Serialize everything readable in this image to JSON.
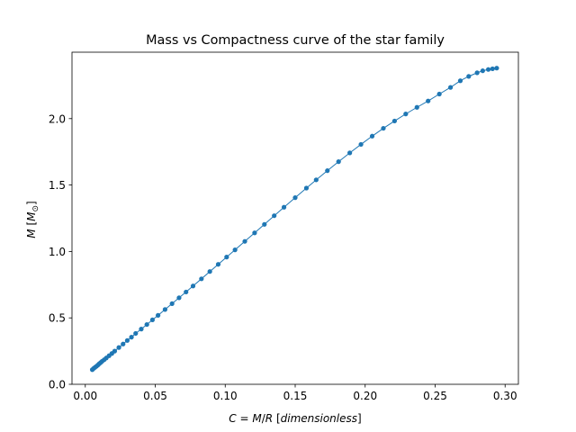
{
  "chart_data": {
    "type": "line",
    "title": "Mass vs Compactness curve of the star family",
    "xlabel": "C = M/R [dimensionless]",
    "ylabel": "M [M⊙]",
    "xlim": [
      -0.0095,
      0.3095
    ],
    "ylim": [
      0.0,
      2.5
    ],
    "x_ticks": [
      0.0,
      0.05,
      0.1,
      0.15,
      0.2,
      0.25,
      0.3
    ],
    "x_tick_labels": [
      "0.00",
      "0.05",
      "0.10",
      "0.15",
      "0.20",
      "0.25",
      "0.30"
    ],
    "y_ticks": [
      0.0,
      0.5,
      1.0,
      1.5,
      2.0
    ],
    "y_tick_labels": [
      "0.0",
      "0.5",
      "1.0",
      "1.5",
      "2.0"
    ],
    "grid": false,
    "legend": "none",
    "color": "#1f77b4",
    "series": [
      {
        "marker": "circle",
        "x": [
          0.005,
          0.006,
          0.007,
          0.008,
          0.009,
          0.01,
          0.011,
          0.012,
          0.0135,
          0.015,
          0.017,
          0.019,
          0.021,
          0.024,
          0.027,
          0.03,
          0.033,
          0.036,
          0.04,
          0.044,
          0.048,
          0.052,
          0.057,
          0.062,
          0.067,
          0.072,
          0.077,
          0.083,
          0.089,
          0.095,
          0.101,
          0.107,
          0.114,
          0.121,
          0.128,
          0.135,
          0.142,
          0.15,
          0.158,
          0.165,
          0.173,
          0.181,
          0.189,
          0.197,
          0.205,
          0.213,
          0.221,
          0.229,
          0.237,
          0.245,
          0.253,
          0.261,
          0.268,
          0.274,
          0.28,
          0.284,
          0.288,
          0.291,
          0.294
        ],
        "y": [
          0.11,
          0.12,
          0.128,
          0.136,
          0.145,
          0.155,
          0.164,
          0.173,
          0.185,
          0.198,
          0.215,
          0.232,
          0.25,
          0.277,
          0.303,
          0.33,
          0.355,
          0.383,
          0.416,
          0.45,
          0.485,
          0.519,
          0.563,
          0.607,
          0.651,
          0.695,
          0.74,
          0.794,
          0.849,
          0.903,
          0.958,
          1.012,
          1.076,
          1.14,
          1.204,
          1.269,
          1.333,
          1.405,
          1.477,
          1.539,
          1.608,
          1.676,
          1.742,
          1.806,
          1.868,
          1.927,
          1.982,
          2.035,
          2.085,
          2.133,
          2.185,
          2.235,
          2.285,
          2.318,
          2.345,
          2.36,
          2.37,
          2.375,
          2.38
        ]
      }
    ]
  }
}
